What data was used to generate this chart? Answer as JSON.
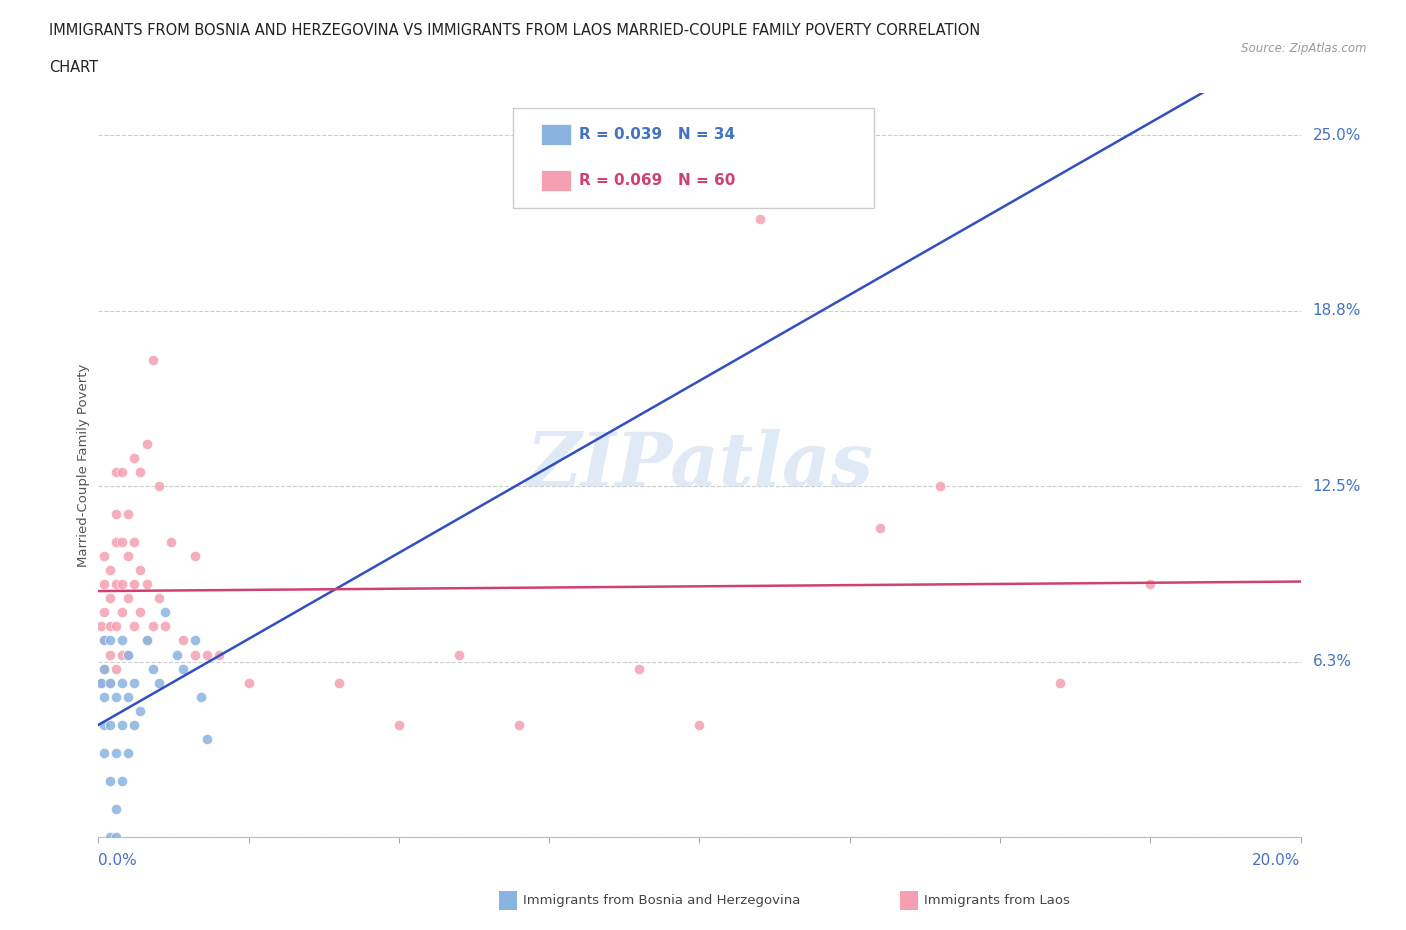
{
  "title_line1": "IMMIGRANTS FROM BOSNIA AND HERZEGOVINA VS IMMIGRANTS FROM LAOS MARRIED-COUPLE FAMILY POVERTY CORRELATION",
  "title_line2": "CHART",
  "source": "Source: ZipAtlas.com",
  "ylabel": "Married-Couple Family Poverty",
  "xlim": [
    0.0,
    0.2
  ],
  "ylim": [
    0.0,
    0.265
  ],
  "bosnia_R": 0.039,
  "bosnia_N": 34,
  "laos_R": 0.069,
  "laos_N": 60,
  "bosnia_color": "#8ab4e0",
  "laos_color": "#f4a0b0",
  "bosnia_line_color": "#3050c0",
  "laos_line_color": "#d04070",
  "ytick_vals": [
    0.0,
    0.0625,
    0.125,
    0.1875,
    0.25
  ],
  "ytick_labels": [
    "",
    "6.3%",
    "12.5%",
    "18.8%",
    "25.0%"
  ],
  "xtick_positions": [
    0.0,
    0.025,
    0.05,
    0.075,
    0.1,
    0.125,
    0.15,
    0.175,
    0.2
  ],
  "legend_bosnia_label": "Immigrants from Bosnia and Herzegovina",
  "legend_laos_label": "Immigrants from Laos",
  "bosnia_x": [
    0.0005,
    0.001,
    0.001,
    0.001,
    0.001,
    0.001,
    0.002,
    0.002,
    0.002,
    0.002,
    0.002,
    0.003,
    0.003,
    0.003,
    0.003,
    0.004,
    0.004,
    0.004,
    0.004,
    0.005,
    0.005,
    0.005,
    0.006,
    0.006,
    0.007,
    0.008,
    0.009,
    0.01,
    0.011,
    0.013,
    0.014,
    0.016,
    0.017,
    0.018
  ],
  "bosnia_y": [
    0.055,
    0.03,
    0.04,
    0.05,
    0.06,
    0.07,
    0.0,
    0.02,
    0.04,
    0.055,
    0.07,
    0.0,
    0.01,
    0.03,
    0.05,
    0.02,
    0.04,
    0.055,
    0.07,
    0.03,
    0.05,
    0.065,
    0.04,
    0.055,
    0.045,
    0.07,
    0.06,
    0.055,
    0.08,
    0.065,
    0.06,
    0.07,
    0.05,
    0.035
  ],
  "laos_x": [
    0.0005,
    0.0005,
    0.001,
    0.001,
    0.001,
    0.001,
    0.001,
    0.002,
    0.002,
    0.002,
    0.002,
    0.002,
    0.003,
    0.003,
    0.003,
    0.003,
    0.003,
    0.003,
    0.004,
    0.004,
    0.004,
    0.004,
    0.004,
    0.005,
    0.005,
    0.005,
    0.005,
    0.006,
    0.006,
    0.006,
    0.006,
    0.007,
    0.007,
    0.007,
    0.008,
    0.008,
    0.008,
    0.009,
    0.009,
    0.01,
    0.01,
    0.011,
    0.012,
    0.014,
    0.016,
    0.016,
    0.018,
    0.02,
    0.025,
    0.04,
    0.05,
    0.06,
    0.07,
    0.09,
    0.1,
    0.11,
    0.13,
    0.14,
    0.16,
    0.175
  ],
  "laos_y": [
    0.055,
    0.075,
    0.06,
    0.07,
    0.08,
    0.09,
    0.1,
    0.055,
    0.065,
    0.075,
    0.085,
    0.095,
    0.06,
    0.075,
    0.09,
    0.105,
    0.115,
    0.13,
    0.065,
    0.08,
    0.09,
    0.105,
    0.13,
    0.065,
    0.085,
    0.1,
    0.115,
    0.075,
    0.09,
    0.105,
    0.135,
    0.08,
    0.095,
    0.13,
    0.07,
    0.09,
    0.14,
    0.075,
    0.17,
    0.085,
    0.125,
    0.075,
    0.105,
    0.07,
    0.065,
    0.1,
    0.065,
    0.065,
    0.055,
    0.055,
    0.04,
    0.065,
    0.04,
    0.06,
    0.04,
    0.22,
    0.11,
    0.125,
    0.055,
    0.09
  ]
}
